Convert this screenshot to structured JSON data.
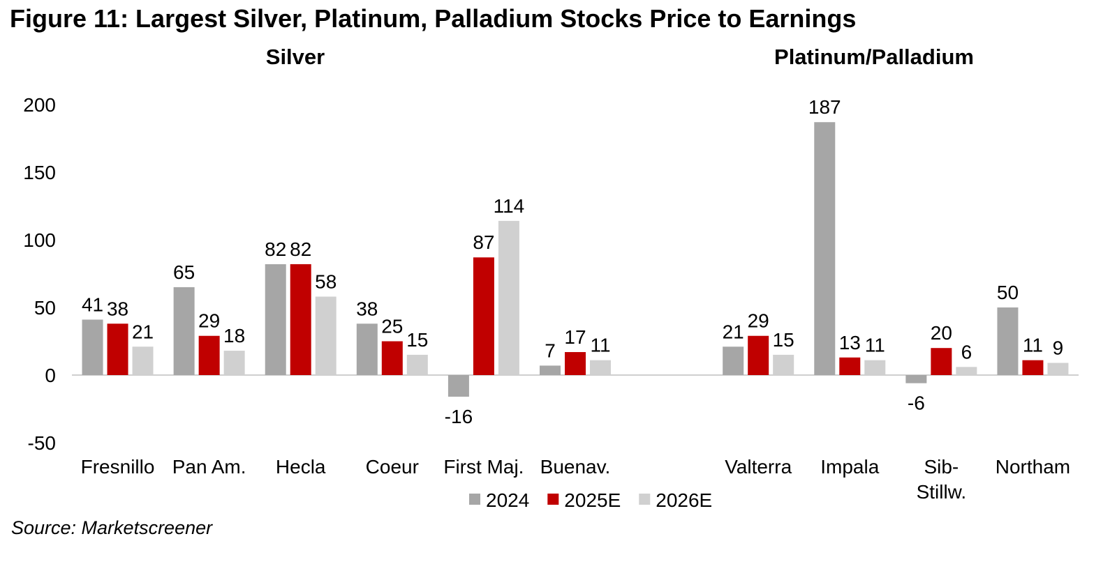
{
  "figure": {
    "title": "Figure 11: Largest Silver, Platinum, Palladium Stocks Price to Earnings",
    "source": "Source: Marketscreener"
  },
  "chart_data": {
    "type": "bar",
    "panel_titles": [
      "Silver",
      "Platinum/Palladium"
    ],
    "categories": [
      "Fresnillo",
      "Pan Am.",
      "Hecla",
      "Coeur",
      "First Maj.",
      "Buenav.",
      "",
      "Valterra",
      "Impala",
      "Sib-Stillw.",
      "Northam"
    ],
    "category_label_lines": [
      [
        "Fresnillo"
      ],
      [
        "Pan Am."
      ],
      [
        "Hecla"
      ],
      [
        "Coeur"
      ],
      [
        "First Maj."
      ],
      [
        "Buenav."
      ],
      [],
      [
        "Valterra"
      ],
      [
        "Impala"
      ],
      [
        "Sib-",
        "Stillw."
      ],
      [
        "Northam"
      ]
    ],
    "series": [
      {
        "name": "2024",
        "color": "#a6a6a6",
        "values": [
          41,
          65,
          82,
          38,
          -16,
          7,
          null,
          21,
          187,
          -6,
          50
        ]
      },
      {
        "name": "2025E",
        "color": "#c00000",
        "values": [
          38,
          29,
          82,
          25,
          87,
          17,
          null,
          29,
          13,
          20,
          11
        ]
      },
      {
        "name": "2026E",
        "color": "#d0d0d0",
        "values": [
          21,
          18,
          58,
          15,
          114,
          11,
          null,
          15,
          11,
          6,
          9
        ]
      }
    ],
    "ylim": [
      -50,
      200
    ],
    "yticks": [
      -50,
      0,
      50,
      100,
      150,
      200
    ],
    "xlabel": "",
    "ylabel": "",
    "legend_position": "bottom-center"
  }
}
